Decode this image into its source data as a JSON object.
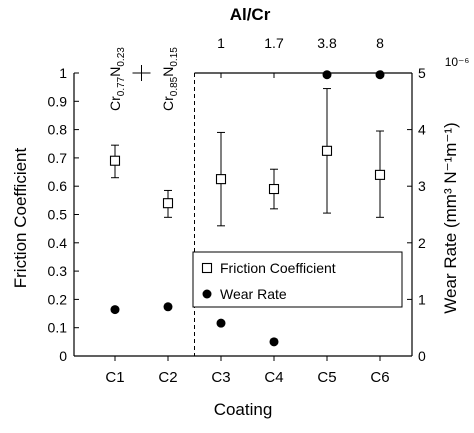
{
  "chart_data": {
    "type": "scatter",
    "title": "Al/Cr",
    "xlabel": "Coating",
    "ylabel": "Friction Coefficient",
    "y2label": "Wear Rate (mm³ N⁻¹m⁻¹)",
    "y2_multiplier": "10⁻⁶",
    "categories": [
      "C1",
      "C2",
      "C3",
      "C4",
      "C5",
      "C6"
    ],
    "top_axis_labels": [
      {
        "category": "C1",
        "formula": {
          "base1": "Cr",
          "sub1": "0.77",
          "base2": "N",
          "sub2": "0.23"
        }
      },
      {
        "category": "C2",
        "formula": {
          "base1": "Cr",
          "sub1": "0.85",
          "base2": "N",
          "sub2": "0.15"
        }
      },
      {
        "category": "C3",
        "text": "1"
      },
      {
        "category": "C4",
        "text": "1.7"
      },
      {
        "category": "C5",
        "text": "3.8"
      },
      {
        "category": "C6",
        "text": "8"
      }
    ],
    "ylim": [
      0,
      1
    ],
    "yticks": [
      "0",
      "0.1",
      "0.2",
      "0.3",
      "0.4",
      "0.5",
      "0.6",
      "0.7",
      "0.8",
      "0.9",
      "1"
    ],
    "y2lim": [
      0,
      5
    ],
    "y2ticks": [
      "0",
      "1",
      "2",
      "3",
      "4",
      "5"
    ],
    "series": [
      {
        "name": "Friction Coefficient",
        "axis": "left",
        "marker": "open-square",
        "values": [
          0.69,
          0.54,
          0.625,
          0.59,
          0.725,
          0.64
        ],
        "error_low": [
          0.63,
          0.49,
          0.46,
          0.52,
          0.505,
          0.49
        ],
        "error_high": [
          0.745,
          0.585,
          0.79,
          0.66,
          0.945,
          0.795
        ]
      },
      {
        "name": "Wear Rate",
        "axis": "right",
        "marker": "filled-circle",
        "values": [
          0.82,
          0.87,
          0.58,
          0.25,
          4.97,
          4.97
        ]
      }
    ],
    "divider_between": [
      "C2",
      "C3"
    ],
    "legend_position": "lower-right",
    "grid": false
  }
}
